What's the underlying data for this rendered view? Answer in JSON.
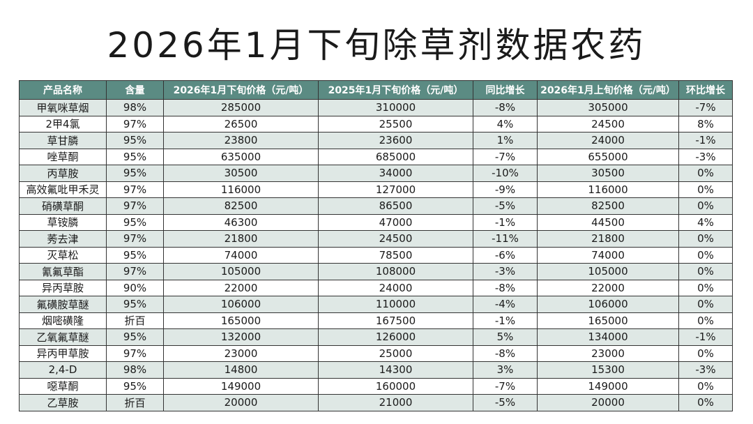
{
  "title": "2026年1月下旬除草剂数据农药",
  "table": {
    "header": [
      "产品名称",
      "含量",
      "2026年1月下旬价格（元/吨）",
      "2025年1月下旬价格（元/吨）",
      "同比增长",
      "2026年1月上旬价格（元/吨）",
      "环比增长"
    ],
    "rows": [
      [
        "甲氧咪草烟",
        "98%",
        "285000",
        "310000",
        "-8%",
        "305000",
        "-7%"
      ],
      [
        "2甲4氯",
        "97%",
        "26500",
        "25500",
        "4%",
        "24500",
        "8%"
      ],
      [
        "草甘膦",
        "95%",
        "23800",
        "23600",
        "1%",
        "24000",
        "-1%"
      ],
      [
        "唑草酮",
        "95%",
        "635000",
        "685000",
        "-7%",
        "655000",
        "-3%"
      ],
      [
        "丙草胺",
        "95%",
        "30500",
        "34000",
        "-10%",
        "30500",
        "0%"
      ],
      [
        "高效氟吡甲禾灵",
        "97%",
        "116000",
        "127000",
        "-9%",
        "116000",
        "0%"
      ],
      [
        "硝磺草酮",
        "97%",
        "82500",
        "86500",
        "-5%",
        "82500",
        "0%"
      ],
      [
        "草铵膦",
        "95%",
        "46300",
        "47000",
        "-1%",
        "44500",
        "4%"
      ],
      [
        "莠去津",
        "97%",
        "21800",
        "24500",
        "-11%",
        "21800",
        "0%"
      ],
      [
        "灭草松",
        "95%",
        "74000",
        "78500",
        "-6%",
        "74000",
        "0%"
      ],
      [
        "氰氟草酯",
        "97%",
        "105000",
        "108000",
        "-3%",
        "105000",
        "0%"
      ],
      [
        "异丙草胺",
        "90%",
        "22000",
        "24000",
        "-8%",
        "22000",
        "0%"
      ],
      [
        "氟磺胺草醚",
        "95%",
        "106000",
        "110000",
        "-4%",
        "106000",
        "0%"
      ],
      [
        "烟嘧磺隆",
        "折百",
        "165000",
        "167500",
        "-1%",
        "165000",
        "0%"
      ],
      [
        "乙氧氟草醚",
        "95%",
        "132000",
        "126000",
        "5%",
        "134000",
        "-1%"
      ],
      [
        "异丙甲草胺",
        "97%",
        "23000",
        "25000",
        "-8%",
        "23000",
        "0%"
      ],
      [
        "2,4-D",
        "98%",
        "14800",
        "14300",
        "3%",
        "15300",
        "-3%"
      ],
      [
        "噁草酮",
        "95%",
        "149000",
        "160000",
        "-7%",
        "149000",
        "0%"
      ],
      [
        "乙草胺",
        "折百",
        "20000",
        "21000",
        "-5%",
        "20000",
        "0%"
      ]
    ]
  }
}
